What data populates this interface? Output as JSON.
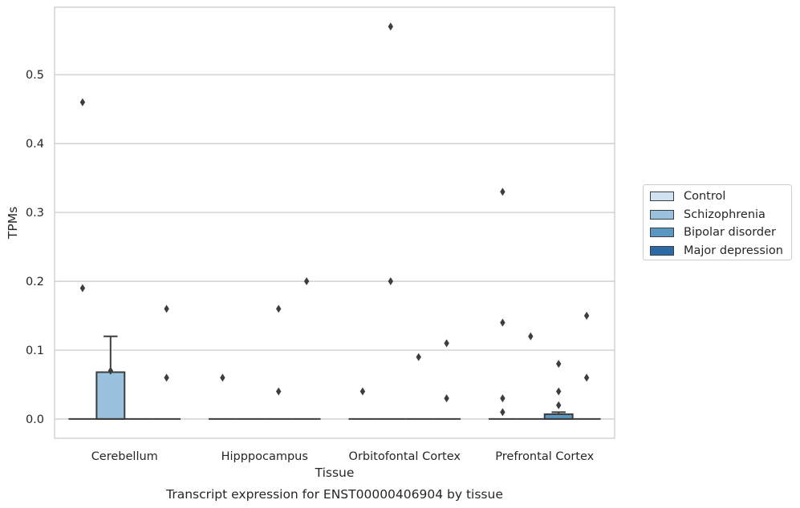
{
  "chart_data": {
    "type": "box",
    "xlabel": "Tissue",
    "ylabel": "TPMs",
    "title": "Transcript expression for ENST00000406904 by tissue",
    "categories": [
      "Cerebellum",
      "Hipppocampus",
      "Orbitofontal Cortex",
      "Prefrontal Cortex"
    ],
    "ylim": [
      -0.028,
      0.598
    ],
    "yticks": [
      0.0,
      0.1,
      0.2,
      0.3,
      0.4,
      0.5
    ],
    "ytick_labels": [
      "0.0",
      "0.1",
      "0.2",
      "0.3",
      "0.4",
      "0.5"
    ],
    "grid": true,
    "legend_position": "right",
    "series": [
      {
        "name": "Control",
        "color": "#d0e1f2",
        "boxes": [
          {
            "q1": 0,
            "median": 0,
            "q3": 0,
            "whislo": 0,
            "whishi": 0,
            "fliers": [
              0.46,
              0.19
            ]
          },
          {
            "q1": 0,
            "median": 0,
            "q3": 0,
            "whislo": 0,
            "whishi": 0,
            "fliers": [
              0.06
            ]
          },
          {
            "q1": 0,
            "median": 0,
            "q3": 0,
            "whislo": 0,
            "whishi": 0,
            "fliers": [
              0.04
            ]
          },
          {
            "q1": 0,
            "median": 0,
            "q3": 0,
            "whislo": 0,
            "whishi": 0,
            "fliers": [
              0.33,
              0.14,
              0.03,
              0.01
            ]
          }
        ]
      },
      {
        "name": "Schizophrenia",
        "color": "#9ac1dd",
        "boxes": [
          {
            "q1": 0,
            "median": 0,
            "q3": 0.068,
            "whislo": 0,
            "whishi": 0.12,
            "fliers": [
              0.07
            ]
          },
          {
            "q1": 0,
            "median": 0,
            "q3": 0,
            "whislo": 0,
            "whishi": 0,
            "fliers": []
          },
          {
            "q1": 0,
            "median": 0,
            "q3": 0,
            "whislo": 0,
            "whishi": 0,
            "fliers": [
              0.57,
              0.2
            ]
          },
          {
            "q1": 0,
            "median": 0,
            "q3": 0,
            "whislo": 0,
            "whishi": 0,
            "fliers": [
              0.12
            ]
          }
        ]
      },
      {
        "name": "Bipolar disorder",
        "color": "#5a97c2",
        "boxes": [
          {
            "q1": 0,
            "median": 0,
            "q3": 0,
            "whislo": 0,
            "whishi": 0,
            "fliers": []
          },
          {
            "q1": 0,
            "median": 0,
            "q3": 0,
            "whislo": 0,
            "whishi": 0,
            "fliers": [
              0.16,
              0.04
            ]
          },
          {
            "q1": 0,
            "median": 0,
            "q3": 0,
            "whislo": 0,
            "whishi": 0,
            "fliers": [
              0.09
            ]
          },
          {
            "q1": 0,
            "median": 0,
            "q3": 0.007,
            "whislo": 0,
            "whishi": 0.01,
            "fliers": [
              0.08,
              0.04,
              0.02
            ]
          }
        ]
      },
      {
        "name": "Major depression",
        "color": "#2c6aa7",
        "boxes": [
          {
            "q1": 0,
            "median": 0,
            "q3": 0,
            "whislo": 0,
            "whishi": 0,
            "fliers": [
              0.16,
              0.06
            ]
          },
          {
            "q1": 0,
            "median": 0,
            "q3": 0,
            "whislo": 0,
            "whishi": 0,
            "fliers": [
              0.2
            ]
          },
          {
            "q1": 0,
            "median": 0,
            "q3": 0,
            "whislo": 0,
            "whishi": 0,
            "fliers": [
              0.11,
              0.03
            ]
          },
          {
            "q1": 0,
            "median": 0,
            "q3": 0,
            "whislo": 0,
            "whishi": 0,
            "fliers": [
              0.15,
              0.06
            ]
          }
        ]
      }
    ]
  }
}
